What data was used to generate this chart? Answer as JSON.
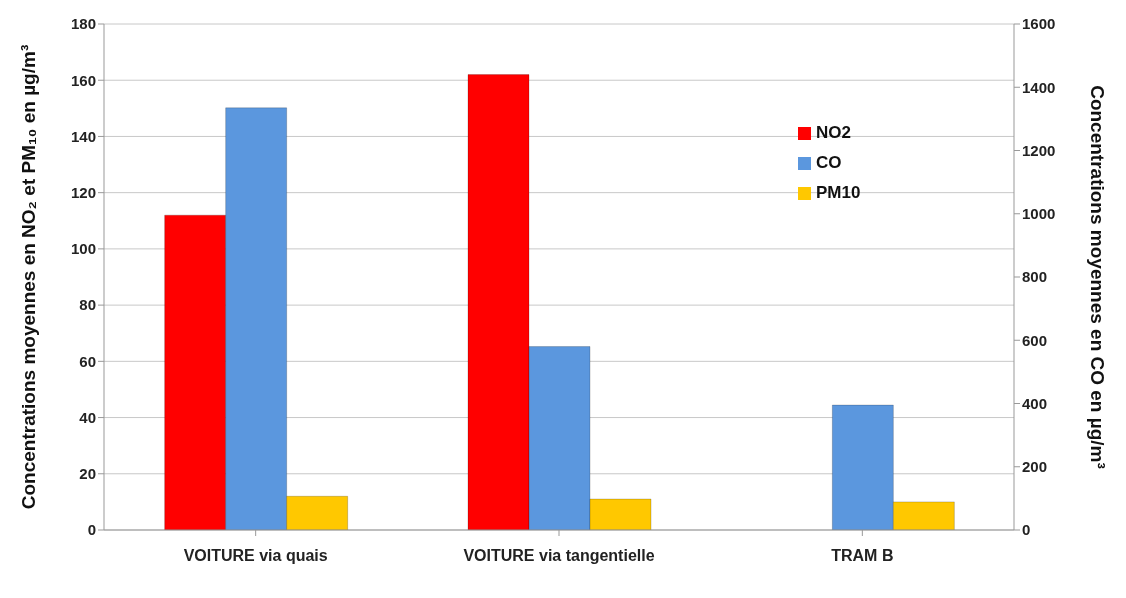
{
  "chart_data": {
    "type": "bar",
    "categories": [
      "VOITURE via quais",
      "VOITURE via tangentielle",
      "TRAM B"
    ],
    "series": [
      {
        "name": "NO2",
        "color": "#ff0000",
        "values": [
          112,
          162,
          null
        ]
      },
      {
        "name": "CO",
        "color": "#5b97de",
        "values": [
          1335,
          580,
          395
        ],
        "axis": "y2"
      },
      {
        "name": "PM10",
        "color": "#ffc800",
        "values": [
          12,
          11,
          10
        ]
      }
    ],
    "ylabel": "Concentrations moyennes en NO₂ et PM₁₀ en µg/m³",
    "y2label": "Concentrations moyennes en CO en µg/m³",
    "ylim": [
      0,
      180
    ],
    "yticks": [
      0,
      20,
      40,
      60,
      80,
      100,
      120,
      140,
      160,
      180
    ],
    "y2lim": [
      0,
      1600
    ],
    "y2ticks": [
      0,
      200,
      400,
      600,
      800,
      1000,
      1200,
      1400,
      1600
    ],
    "grid": "y",
    "legend": "top right"
  }
}
